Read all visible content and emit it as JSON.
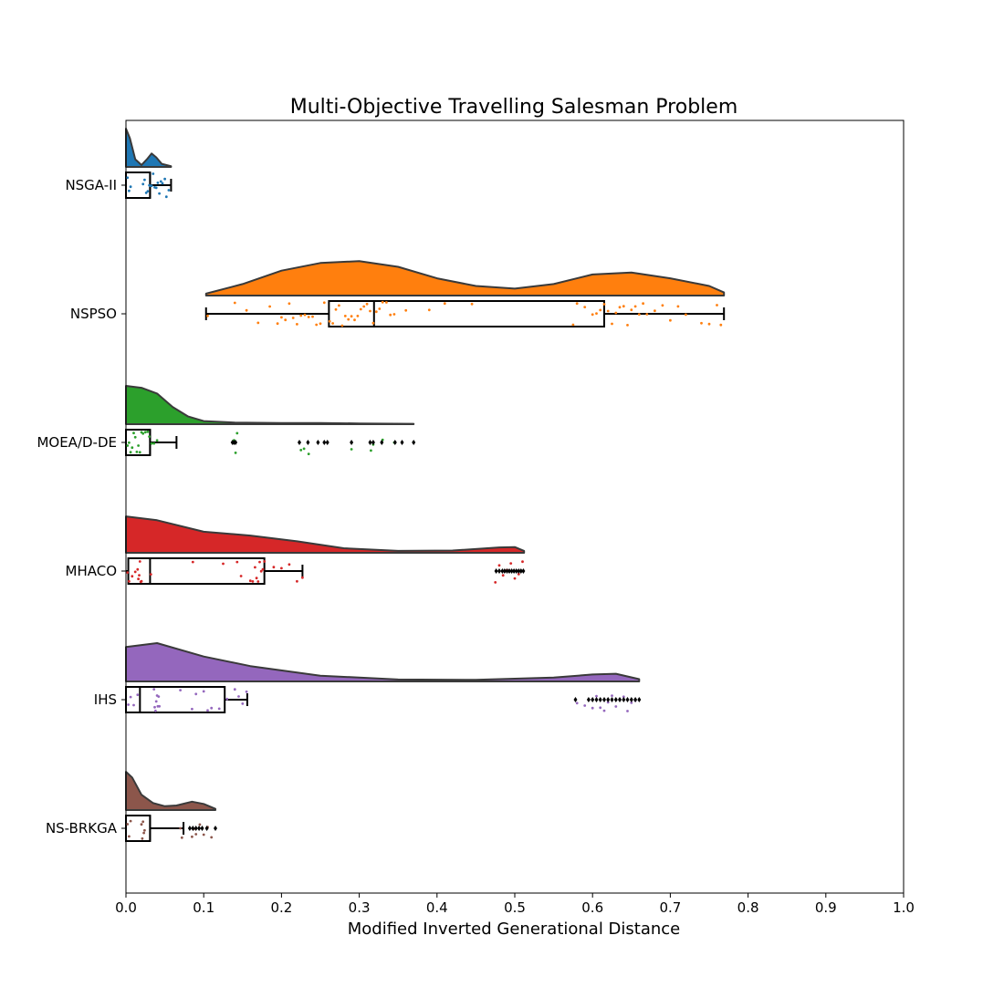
{
  "chart_data": {
    "type": "raincloud",
    "title": "Multi-Objective Travelling Salesman Problem",
    "xlabel": "Modified Inverted Generational Distance",
    "ylabel": "",
    "xlim": [
      0.0,
      1.0
    ],
    "xticks": [
      "0.0",
      "0.1",
      "0.2",
      "0.3",
      "0.4",
      "0.5",
      "0.6",
      "0.7",
      "0.8",
      "0.9",
      "1.0"
    ],
    "grid": false,
    "categories": [
      "NSGA-II",
      "NSPSO",
      "MOEA/D-DE",
      "MHACO",
      "IHS",
      "NS-BRKGA"
    ],
    "series": [
      {
        "color": "#1f77b4",
        "box": {
          "whisker_low": 0.0,
          "q1": 0.0,
          "median": 0.031,
          "q3": 0.031,
          "whisker_high": 0.058
        },
        "points": [
          0.002,
          0.004,
          0.006,
          0.022,
          0.024,
          0.026,
          0.028,
          0.03,
          0.031,
          0.033,
          0.035,
          0.037,
          0.039,
          0.041,
          0.043,
          0.045,
          0.047,
          0.05,
          0.052,
          0.055
        ],
        "outliers": [],
        "density": [
          [
            0.0,
            1.0
          ],
          [
            0.005,
            0.75
          ],
          [
            0.012,
            0.2
          ],
          [
            0.02,
            0.05
          ],
          [
            0.027,
            0.2
          ],
          [
            0.033,
            0.35
          ],
          [
            0.039,
            0.25
          ],
          [
            0.046,
            0.08
          ],
          [
            0.058,
            0.02
          ]
        ]
      },
      {
        "color": "#ff7f0e",
        "box": {
          "whisker_low": 0.103,
          "q1": 0.261,
          "median": 0.319,
          "q3": 0.615,
          "whisker_high": 0.769
        },
        "points": [
          0.105,
          0.14,
          0.155,
          0.17,
          0.185,
          0.195,
          0.2,
          0.205,
          0.21,
          0.215,
          0.22,
          0.225,
          0.23,
          0.235,
          0.24,
          0.245,
          0.25,
          0.255,
          0.262,
          0.266,
          0.27,
          0.274,
          0.278,
          0.282,
          0.286,
          0.29,
          0.294,
          0.298,
          0.302,
          0.306,
          0.31,
          0.314,
          0.318,
          0.322,
          0.326,
          0.33,
          0.335,
          0.34,
          0.345,
          0.36,
          0.39,
          0.41,
          0.445,
          0.575,
          0.58,
          0.59,
          0.6,
          0.605,
          0.61,
          0.615,
          0.62,
          0.625,
          0.63,
          0.635,
          0.64,
          0.645,
          0.65,
          0.655,
          0.66,
          0.665,
          0.67,
          0.68,
          0.69,
          0.7,
          0.71,
          0.72,
          0.74,
          0.75,
          0.76,
          0.765
        ],
        "outliers": [],
        "density": [
          [
            0.103,
            0.05
          ],
          [
            0.15,
            0.3
          ],
          [
            0.2,
            0.65
          ],
          [
            0.25,
            0.85
          ],
          [
            0.3,
            0.9
          ],
          [
            0.35,
            0.75
          ],
          [
            0.4,
            0.45
          ],
          [
            0.45,
            0.25
          ],
          [
            0.5,
            0.18
          ],
          [
            0.55,
            0.3
          ],
          [
            0.6,
            0.55
          ],
          [
            0.65,
            0.6
          ],
          [
            0.7,
            0.45
          ],
          [
            0.75,
            0.25
          ],
          [
            0.769,
            0.08
          ]
        ]
      },
      {
        "color": "#2ca02c",
        "box": {
          "whisker_low": 0.0,
          "q1": 0.0,
          "median": 0.031,
          "q3": 0.031,
          "whisker_high": 0.065
        },
        "points": [
          0.002,
          0.004,
          0.006,
          0.008,
          0.01,
          0.012,
          0.014,
          0.016,
          0.018,
          0.02,
          0.022,
          0.025,
          0.028,
          0.03,
          0.033,
          0.036,
          0.04,
          0.139,
          0.141,
          0.143,
          0.225,
          0.229,
          0.235,
          0.29,
          0.315,
          0.318,
          0.33,
          0.345,
          0.37
        ],
        "outliers": [
          0.137,
          0.139,
          0.141,
          0.223,
          0.234,
          0.247,
          0.255,
          0.259,
          0.29,
          0.314,
          0.318,
          0.329,
          0.346,
          0.355,
          0.37
        ],
        "density": [
          [
            0.0,
            1.0
          ],
          [
            0.02,
            0.95
          ],
          [
            0.04,
            0.8
          ],
          [
            0.06,
            0.45
          ],
          [
            0.08,
            0.2
          ],
          [
            0.1,
            0.08
          ],
          [
            0.14,
            0.04
          ],
          [
            0.2,
            0.03
          ],
          [
            0.25,
            0.03
          ],
          [
            0.3,
            0.02
          ],
          [
            0.37,
            0.01
          ]
        ]
      },
      {
        "color": "#d62728",
        "box": {
          "whisker_low": 0.0,
          "q1": 0.003,
          "median": 0.031,
          "q3": 0.178,
          "whisker_high": 0.227
        },
        "points": [
          0.002,
          0.004,
          0.008,
          0.012,
          0.015,
          0.016,
          0.017,
          0.018,
          0.019,
          0.02,
          0.032,
          0.086,
          0.125,
          0.143,
          0.148,
          0.16,
          0.163,
          0.166,
          0.168,
          0.17,
          0.172,
          0.174,
          0.176,
          0.178,
          0.19,
          0.2,
          0.21,
          0.22,
          0.227,
          0.475,
          0.48,
          0.485,
          0.49,
          0.495,
          0.5,
          0.505,
          0.51
        ],
        "outliers": [
          0.476,
          0.48,
          0.484,
          0.487,
          0.49,
          0.493,
          0.496,
          0.499,
          0.502,
          0.505,
          0.508,
          0.511
        ],
        "density": [
          [
            0.0,
            0.95
          ],
          [
            0.04,
            0.85
          ],
          [
            0.1,
            0.55
          ],
          [
            0.16,
            0.45
          ],
          [
            0.22,
            0.3
          ],
          [
            0.28,
            0.12
          ],
          [
            0.35,
            0.05
          ],
          [
            0.42,
            0.06
          ],
          [
            0.48,
            0.14
          ],
          [
            0.5,
            0.15
          ],
          [
            0.512,
            0.05
          ]
        ]
      },
      {
        "color": "#9467bd",
        "box": {
          "whisker_low": 0.0,
          "q1": 0.0,
          "median": 0.018,
          "q3": 0.127,
          "whisker_high": 0.156
        },
        "points": [
          0.003,
          0.006,
          0.01,
          0.015,
          0.036,
          0.037,
          0.038,
          0.039,
          0.04,
          0.041,
          0.042,
          0.043,
          0.07,
          0.085,
          0.09,
          0.1,
          0.105,
          0.11,
          0.12,
          0.13,
          0.14,
          0.145,
          0.15,
          0.155,
          0.58,
          0.59,
          0.6,
          0.605,
          0.61,
          0.615,
          0.62,
          0.625,
          0.63,
          0.635,
          0.64,
          0.645,
          0.65,
          0.655
        ],
        "outliers": [
          0.578,
          0.595,
          0.6,
          0.605,
          0.61,
          0.615,
          0.62,
          0.625,
          0.63,
          0.635,
          0.64,
          0.645,
          0.65,
          0.655,
          0.66
        ],
        "density": [
          [
            0.0,
            0.9
          ],
          [
            0.04,
            1.0
          ],
          [
            0.1,
            0.65
          ],
          [
            0.16,
            0.4
          ],
          [
            0.25,
            0.15
          ],
          [
            0.35,
            0.05
          ],
          [
            0.45,
            0.04
          ],
          [
            0.55,
            0.1
          ],
          [
            0.6,
            0.18
          ],
          [
            0.63,
            0.2
          ],
          [
            0.66,
            0.06
          ]
        ]
      },
      {
        "color": "#8c564b",
        "box": {
          "whisker_low": 0.0,
          "q1": 0.0,
          "median": 0.031,
          "q3": 0.031,
          "whisker_high": 0.074
        },
        "points": [
          0.002,
          0.004,
          0.006,
          0.02,
          0.021,
          0.022,
          0.023,
          0.024,
          0.07,
          0.072,
          0.085,
          0.087,
          0.09,
          0.095,
          0.1,
          0.105,
          0.11
        ],
        "outliers": [
          0.082,
          0.086,
          0.09,
          0.094,
          0.098,
          0.104,
          0.115
        ],
        "density": [
          [
            0.0,
            1.0
          ],
          [
            0.008,
            0.85
          ],
          [
            0.02,
            0.4
          ],
          [
            0.035,
            0.18
          ],
          [
            0.05,
            0.1
          ],
          [
            0.065,
            0.12
          ],
          [
            0.085,
            0.22
          ],
          [
            0.1,
            0.16
          ],
          [
            0.115,
            0.03
          ]
        ]
      }
    ]
  }
}
